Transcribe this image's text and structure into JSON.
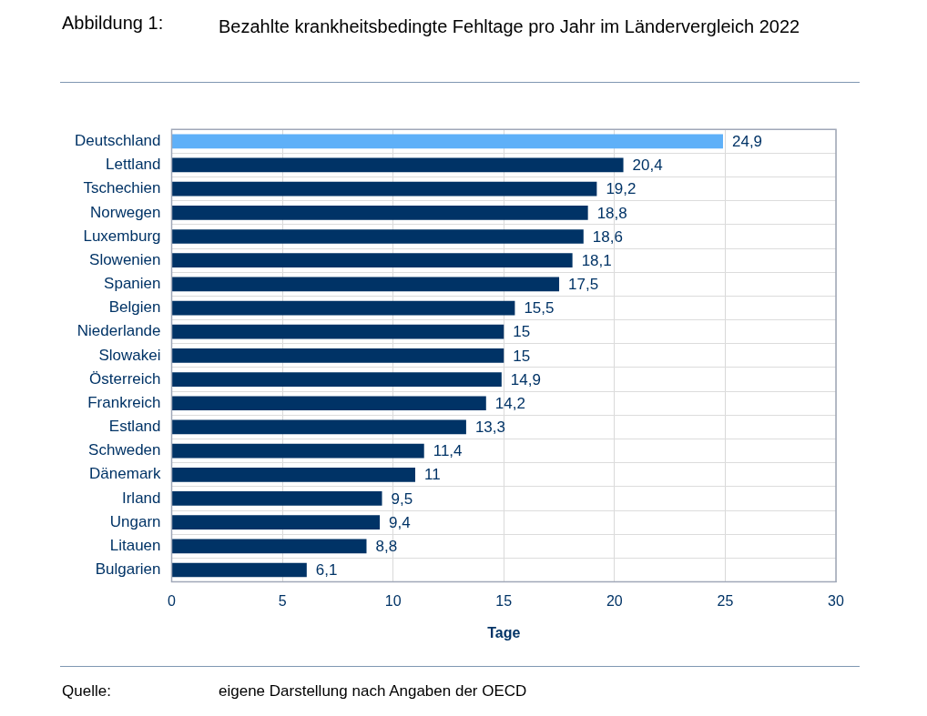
{
  "chart_data": {
    "type": "bar",
    "orientation": "horizontal",
    "title": "Bezahlte krankheitsbedingte Fehltage pro Jahr im Ländervergleich 2022",
    "xlabel": "Tage",
    "categories": [
      "Deutschland",
      "Lettland",
      "Tschechien",
      "Norwegen",
      "Luxemburg",
      "Slowenien",
      "Spanien",
      "Belgien",
      "Niederlande",
      "Slowakei",
      "Österreich",
      "Frankreich",
      "Estland",
      "Schweden",
      "Dänemark",
      "Irland",
      "Ungarn",
      "Litauen",
      "Bulgarien"
    ],
    "values": [
      24.9,
      20.4,
      19.2,
      18.8,
      18.6,
      18.1,
      17.5,
      15.5,
      15,
      15,
      14.9,
      14.2,
      13.3,
      11.4,
      11,
      9.5,
      9.4,
      8.8,
      6.1
    ],
    "colors": [
      "#5eb0f8",
      "#003366",
      "#003366",
      "#003366",
      "#003366",
      "#003366",
      "#003366",
      "#003366",
      "#003366",
      "#003366",
      "#003366",
      "#003366",
      "#003366",
      "#003366",
      "#003366",
      "#003366",
      "#003366",
      "#003366",
      "#003366"
    ],
    "value_labels": [
      "24,9",
      "20,4",
      "19,2",
      "18,8",
      "18,6",
      "18,1",
      "17,5",
      "15,5",
      "15",
      "15",
      "14,9",
      "14,2",
      "13,3",
      "11,4",
      "11",
      "9,5",
      "9,4",
      "8,8",
      "6,1"
    ],
    "xlim": [
      0,
      30
    ],
    "xticks": [
      0,
      5,
      10,
      15,
      20,
      25,
      30
    ],
    "grid": true,
    "legend": false,
    "annotations": [
      "Abbildung 1:",
      "Quelle:",
      "eigene Darstellung nach Angaben der OECD"
    ]
  }
}
